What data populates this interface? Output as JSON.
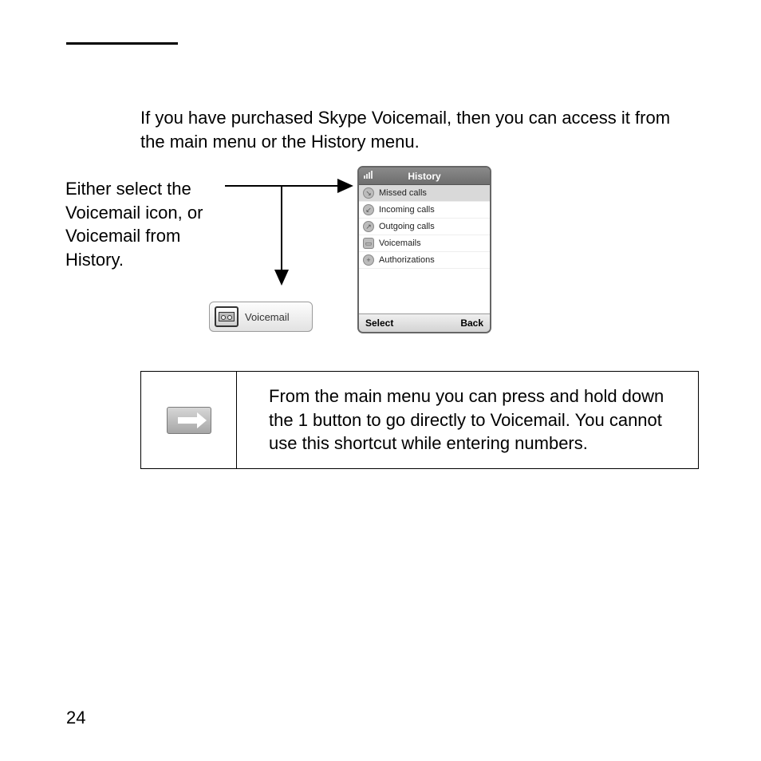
{
  "intro": "If you have purchased Skype Voicemail, then you can access it from the main menu or the History menu.",
  "callout": "Either select the Voicemail icon, or Voicemail from History.",
  "voicemail_lozenge_label": "Voicemail",
  "phone": {
    "title": "History",
    "items": [
      {
        "label": "Missed calls",
        "selected": true,
        "icon": "missed"
      },
      {
        "label": "Incoming calls",
        "selected": false,
        "icon": "incoming"
      },
      {
        "label": "Outgoing calls",
        "selected": false,
        "icon": "outgoing"
      },
      {
        "label": "Voicemails",
        "selected": false,
        "icon": "voicemail"
      },
      {
        "label": "Authorizations",
        "selected": false,
        "icon": "auth"
      }
    ],
    "softkey_left": "Select",
    "softkey_right": "Back"
  },
  "tip": "From the main menu you can press and hold down the 1 button to go directly to Voicemail. You cannot use this shortcut while entering numbers.",
  "page_number": "24",
  "colors": {
    "page_bg": "#ffffff",
    "text": "#000000",
    "phone_titlebar": "#7a7a7a",
    "phone_selected_row": "#d9d9d9",
    "lozenge_border": "#9a9a9a",
    "tip_icon_bg": "#bfbfbf"
  },
  "fontsizes": {
    "body": 22,
    "phone_list": 11,
    "phone_title": 12,
    "phone_softkey": 12,
    "vm_label": 13
  }
}
